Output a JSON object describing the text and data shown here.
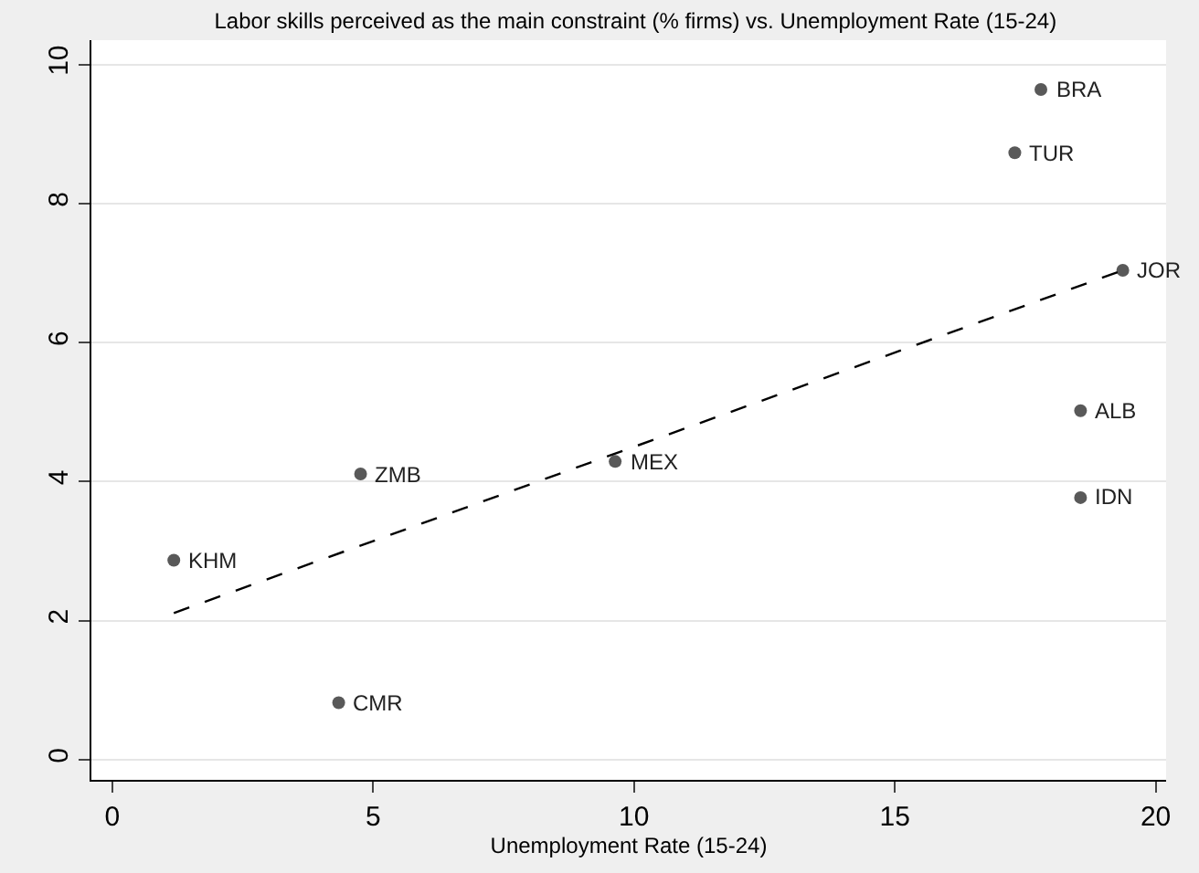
{
  "chart_data": {
    "type": "scatter",
    "title": "Labor skills perceived as the main constraint (% firms) vs. Unemployment Rate (15-24)",
    "xlabel": "Unemployment Rate (15-24)",
    "series": [
      {
        "color": "#595959",
        "marker": "circle",
        "x": [
          1.18,
          4.34,
          4.76,
          9.64,
          17.3,
          17.8,
          18.56,
          18.56,
          19.37
        ],
        "values": [
          2.87,
          0.82,
          4.11,
          4.29,
          8.73,
          9.64,
          5.02,
          3.77,
          7.04
        ]
      },
      {
        "type": "line",
        "color": "#000000",
        "line_style": "dashed",
        "marker": "none",
        "x": [
          1.18,
          19.37
        ],
        "values": [
          2.11,
          7.04
        ]
      }
    ],
    "annotations": [
      {
        "text": "KHM",
        "x": 1.18,
        "y": 2.87
      },
      {
        "text": "CMR",
        "x": 4.34,
        "y": 0.82
      },
      {
        "text": "ZMB",
        "x": 4.76,
        "y": 4.11
      },
      {
        "text": "MEX",
        "x": 9.64,
        "y": 4.29
      },
      {
        "text": "TUR",
        "x": 17.3,
        "y": 8.73
      },
      {
        "text": "BRA",
        "x": 17.8,
        "y": 9.64
      },
      {
        "text": "ALB",
        "x": 18.56,
        "y": 5.02
      },
      {
        "text": "IDN",
        "x": 18.56,
        "y": 3.77
      },
      {
        "text": "JOR",
        "x": 19.37,
        "y": 7.04
      }
    ],
    "xlim": [
      -0.4,
      20.2
    ],
    "xticks": [
      0,
      5,
      10,
      15,
      20
    ],
    "ylim": [
      -0.29,
      10.35
    ],
    "yticks": [
      0,
      2,
      4,
      6,
      8,
      10
    ],
    "grid": "y"
  }
}
